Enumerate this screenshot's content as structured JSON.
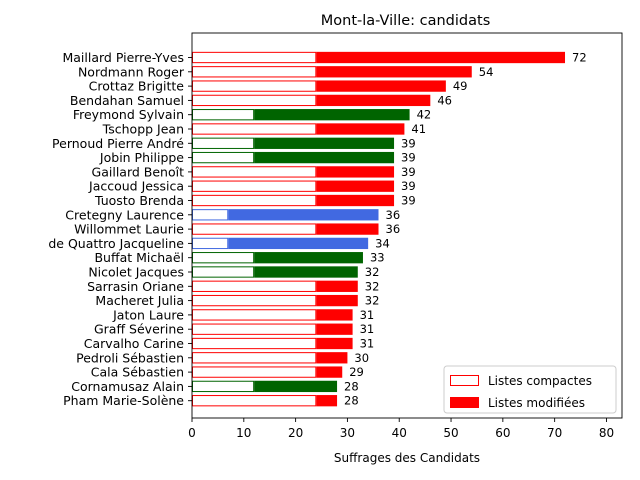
{
  "chart_data": {
    "type": "bar",
    "orientation": "horizontal",
    "title": "Mont-la-Ville: candidats",
    "xlabel": "Suffrages des Candidats",
    "ylabel": "",
    "xlim": [
      0,
      83
    ],
    "xticks": [
      0,
      10,
      20,
      30,
      40,
      50,
      60,
      70,
      80
    ],
    "grid": false,
    "legend_position": "bottom-right",
    "legend": [
      {
        "label": "Listes compactes",
        "style": "outline"
      },
      {
        "label": "Listes modifiées",
        "style": "filled"
      }
    ],
    "colors": {
      "red": "#ff0000",
      "green": "#006400",
      "blue": "#4169e1"
    },
    "candidates": [
      {
        "name": "Maillard Pierre-Yves",
        "total": 72,
        "compact": 24,
        "color": "red"
      },
      {
        "name": "Nordmann Roger",
        "total": 54,
        "compact": 24,
        "color": "red"
      },
      {
        "name": "Crottaz Brigitte",
        "total": 49,
        "compact": 24,
        "color": "red"
      },
      {
        "name": "Bendahan Samuel",
        "total": 46,
        "compact": 24,
        "color": "red"
      },
      {
        "name": "Freymond Sylvain",
        "total": 42,
        "compact": 12,
        "color": "green"
      },
      {
        "name": "Tschopp Jean",
        "total": 41,
        "compact": 24,
        "color": "red"
      },
      {
        "name": "Pernoud Pierre André",
        "total": 39,
        "compact": 12,
        "color": "green"
      },
      {
        "name": "Jobin Philippe",
        "total": 39,
        "compact": 12,
        "color": "green"
      },
      {
        "name": "Gaillard Benoît",
        "total": 39,
        "compact": 24,
        "color": "red"
      },
      {
        "name": "Jaccoud Jessica",
        "total": 39,
        "compact": 24,
        "color": "red"
      },
      {
        "name": "Tuosto Brenda",
        "total": 39,
        "compact": 24,
        "color": "red"
      },
      {
        "name": "Cretegny Laurence",
        "total": 36,
        "compact": 7,
        "color": "blue"
      },
      {
        "name": "Willommet Laurie",
        "total": 36,
        "compact": 24,
        "color": "red"
      },
      {
        "name": "de Quattro Jacqueline",
        "total": 34,
        "compact": 7,
        "color": "blue"
      },
      {
        "name": "Buffat Michaël",
        "total": 33,
        "compact": 12,
        "color": "green"
      },
      {
        "name": "Nicolet Jacques",
        "total": 32,
        "compact": 12,
        "color": "green"
      },
      {
        "name": "Sarrasin Oriane",
        "total": 32,
        "compact": 24,
        "color": "red"
      },
      {
        "name": "Macheret Julia",
        "total": 32,
        "compact": 24,
        "color": "red"
      },
      {
        "name": "Jaton Laure",
        "total": 31,
        "compact": 24,
        "color": "red"
      },
      {
        "name": "Graff Séverine",
        "total": 31,
        "compact": 24,
        "color": "red"
      },
      {
        "name": "Carvalho Carine",
        "total": 31,
        "compact": 24,
        "color": "red"
      },
      {
        "name": "Pedroli Sébastien",
        "total": 30,
        "compact": 24,
        "color": "red"
      },
      {
        "name": "Cala Sébastien",
        "total": 29,
        "compact": 24,
        "color": "red"
      },
      {
        "name": "Cornamusaz Alain",
        "total": 28,
        "compact": 12,
        "color": "green"
      },
      {
        "name": "Pham Marie-Solène",
        "total": 28,
        "compact": 24,
        "color": "red"
      }
    ]
  }
}
